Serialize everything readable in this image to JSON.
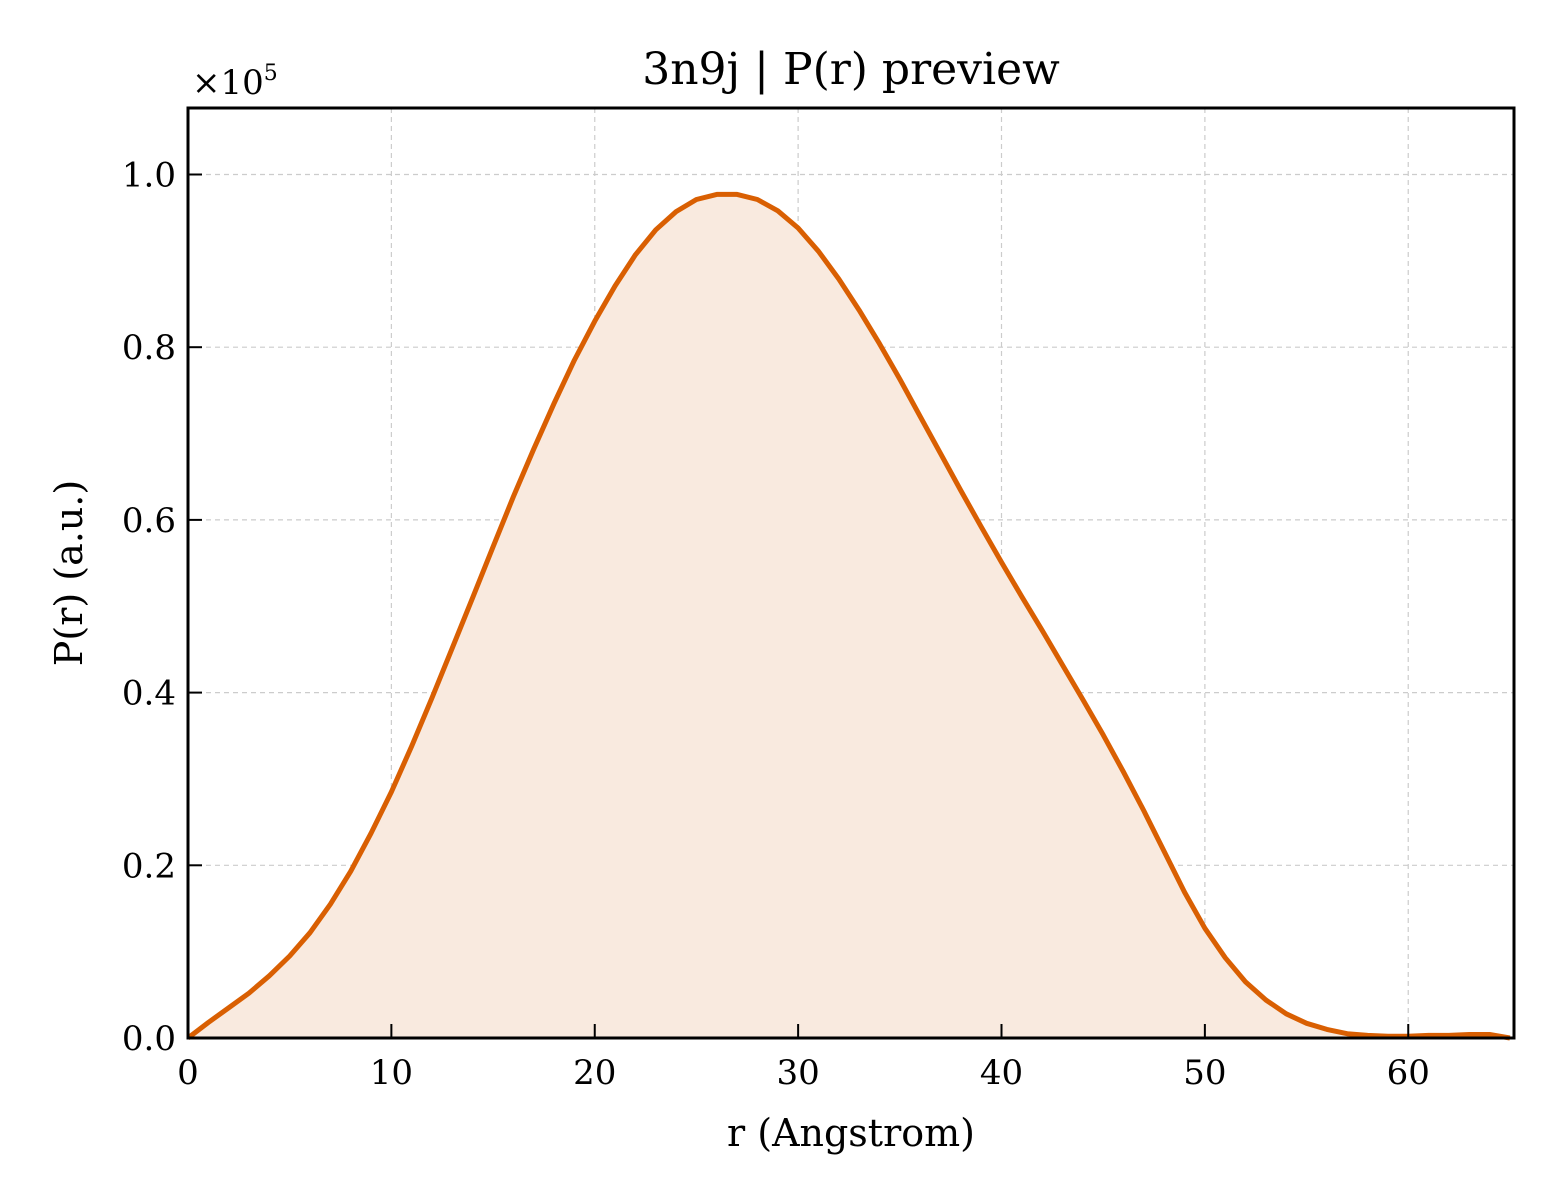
{
  "colors": {
    "line": "#d95f02",
    "fill": "#f9eadf",
    "grid": "#cccccc",
    "axes": "#000000"
  },
  "chart_data": {
    "type": "area",
    "title": "3n9j | P(r) preview",
    "xlabel": "r (Angstrom)",
    "ylabel": "P(r) (a.u.)",
    "y_multiplier_text": "×10",
    "y_multiplier_exponent": "5",
    "xlim": [
      0,
      65.2
    ],
    "ylim": [
      0,
      1.077
    ],
    "x_ticks": [
      0,
      10,
      20,
      30,
      40,
      50,
      60
    ],
    "x_tick_labels": [
      "0",
      "10",
      "20",
      "30",
      "40",
      "50",
      "60"
    ],
    "y_ticks": [
      0.0,
      0.2,
      0.4,
      0.6,
      0.8,
      1.0
    ],
    "y_tick_labels": [
      "0.0",
      "0.2",
      "0.4",
      "0.6",
      "0.8",
      "1.0"
    ],
    "grid": true,
    "y_scale": "linear",
    "series": [
      {
        "x": [
          0,
          1,
          2,
          3,
          4,
          5,
          6,
          7,
          8,
          9,
          10,
          11,
          12,
          13,
          14,
          15,
          16,
          17,
          18,
          19,
          20,
          21,
          22,
          23,
          24,
          25,
          26,
          27,
          28,
          29,
          30,
          31,
          32,
          33,
          34,
          35,
          36,
          37,
          38,
          39,
          40,
          41,
          42,
          43,
          44,
          45,
          46,
          47,
          48,
          49,
          50,
          51,
          52,
          53,
          54,
          55,
          56,
          57,
          58,
          59,
          60,
          61,
          62,
          63,
          64,
          65
        ],
        "y": [
          0.0,
          0.018,
          0.035,
          0.052,
          0.072,
          0.095,
          0.122,
          0.155,
          0.193,
          0.237,
          0.285,
          0.338,
          0.394,
          0.452,
          0.51,
          0.569,
          0.627,
          0.682,
          0.735,
          0.785,
          0.83,
          0.871,
          0.907,
          0.936,
          0.957,
          0.971,
          0.977,
          0.977,
          0.971,
          0.958,
          0.938,
          0.911,
          0.879,
          0.843,
          0.804,
          0.763,
          0.72,
          0.677,
          0.634,
          0.592,
          0.551,
          0.511,
          0.472,
          0.432,
          0.392,
          0.351,
          0.308,
          0.263,
          0.216,
          0.169,
          0.127,
          0.093,
          0.065,
          0.044,
          0.028,
          0.017,
          0.01,
          0.005,
          0.003,
          0.002,
          0.002,
          0.003,
          0.003,
          0.004,
          0.004,
          0.0
        ]
      }
    ]
  }
}
